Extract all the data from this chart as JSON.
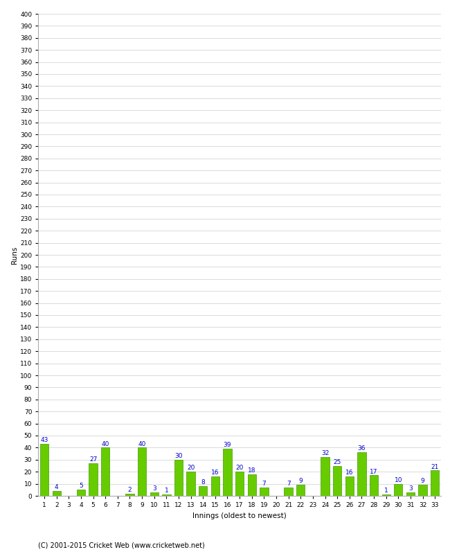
{
  "values": [
    43,
    4,
    0,
    5,
    27,
    40,
    0,
    2,
    40,
    3,
    1,
    30,
    20,
    8,
    16,
    39,
    20,
    18,
    7,
    0,
    7,
    9,
    0,
    32,
    25,
    16,
    36,
    17,
    1,
    10,
    3,
    9,
    21
  ],
  "innings": [
    1,
    2,
    3,
    4,
    5,
    6,
    7,
    8,
    9,
    10,
    11,
    12,
    13,
    14,
    15,
    16,
    17,
    18,
    19,
    20,
    21,
    22,
    23,
    24,
    25,
    26,
    27,
    28,
    29,
    30,
    31,
    32,
    33
  ],
  "bar_color": "#66cc00",
  "bar_edge_color": "#449900",
  "label_color": "#0000cc",
  "ylabel": "Runs",
  "xlabel": "Innings (oldest to newest)",
  "footer": "(C) 2001-2015 Cricket Web (www.cricketweb.net)",
  "ylim": [
    0,
    400
  ],
  "yticks": [
    0,
    10,
    20,
    30,
    40,
    50,
    60,
    70,
    80,
    90,
    100,
    110,
    120,
    130,
    140,
    150,
    160,
    170,
    180,
    190,
    200,
    210,
    220,
    230,
    240,
    250,
    260,
    270,
    280,
    290,
    300,
    310,
    320,
    330,
    340,
    350,
    360,
    370,
    380,
    390,
    400
  ],
  "bg_color": "#ffffff",
  "grid_color": "#cccccc",
  "label_fontsize": 6.5,
  "tick_fontsize": 6.5,
  "axis_label_fontsize": 7.5,
  "footer_fontsize": 7
}
